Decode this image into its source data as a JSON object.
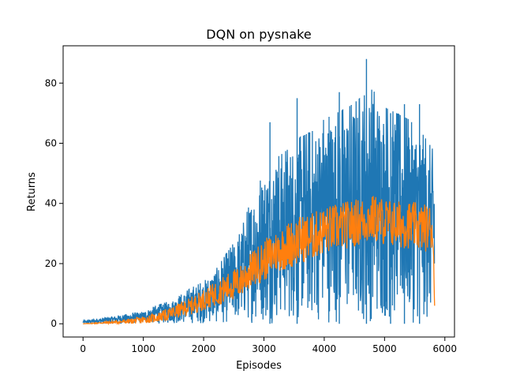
{
  "chart_data": {
    "type": "line",
    "title": "DQN on pysnake",
    "xlabel": "Episodes",
    "ylabel": "Returns",
    "xlim": [
      -330,
      6160
    ],
    "ylim": [
      -4.4,
      92.4
    ],
    "x_ticks": [
      0,
      1000,
      2000,
      3000,
      4000,
      5000,
      6000
    ],
    "y_ticks": [
      0,
      20,
      40,
      60,
      80
    ],
    "grid": false,
    "legend": "none",
    "series": [
      {
        "color": "#1f77b4",
        "role": "raw returns per episode (noisy band)",
        "x": [
          0,
          500,
          1000,
          1200,
          1500,
          1800,
          2000,
          2200,
          2400,
          2600,
          2800,
          3000,
          3200,
          3400,
          3600,
          3800,
          4000,
          4200,
          4400,
          4600,
          4800,
          5000,
          5200,
          5400,
          5600,
          5800,
          5830
        ],
        "upper": [
          1,
          2.5,
          4,
          6,
          8,
          12,
          14,
          18,
          24,
          30,
          42,
          50,
          55,
          58,
          62,
          64,
          68,
          70,
          72,
          75,
          78,
          72,
          70,
          68,
          64,
          58,
          58
        ],
        "lower": [
          0,
          0,
          0,
          0,
          0,
          0,
          0,
          0,
          0,
          0,
          0,
          0,
          0,
          0,
          0,
          0,
          0,
          0,
          0,
          0,
          0,
          0,
          0,
          0,
          0,
          0,
          0
        ],
        "peaks": [
          {
            "x": 3100,
            "y": 67
          },
          {
            "x": 3550,
            "y": 75
          },
          {
            "x": 4250,
            "y": 77
          },
          {
            "x": 4700,
            "y": 88
          },
          {
            "x": 5100,
            "y": 70
          },
          {
            "x": 5330,
            "y": 73
          },
          {
            "x": 5580,
            "y": 73
          }
        ]
      },
      {
        "color": "#ff7f0e",
        "role": "moving average",
        "x": [
          0,
          200,
          400,
          600,
          800,
          1000,
          1200,
          1400,
          1600,
          1800,
          2000,
          2200,
          2400,
          2600,
          2800,
          3000,
          3200,
          3400,
          3600,
          3800,
          4000,
          4200,
          4400,
          4600,
          4800,
          5000,
          5200,
          5400,
          5600,
          5800,
          5830
        ],
        "values": [
          0,
          0.2,
          0.4,
          0.6,
          0.9,
          1.3,
          2,
          3,
          4.5,
          6,
          8,
          10,
          12,
          14,
          18,
          21,
          24,
          26,
          28,
          29,
          31,
          32,
          33,
          34,
          35,
          34,
          33,
          33,
          32,
          32,
          6
        ],
        "spread": [
          0,
          0.2,
          0.4,
          0.6,
          0.9,
          1.2,
          1.5,
          2,
          2.5,
          3,
          3.5,
          4,
          5,
          5.5,
          6,
          7,
          7,
          8,
          8,
          8,
          8,
          8,
          8,
          8,
          8,
          8,
          8,
          8,
          8,
          8,
          0
        ]
      }
    ]
  }
}
